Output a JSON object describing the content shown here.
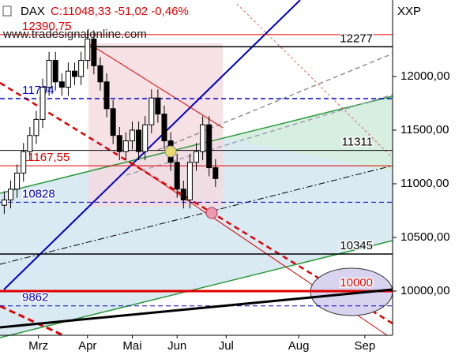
{
  "chart_data": {
    "type": "candlestick",
    "title": "DAX",
    "subtitle": "C:11048,33 -51,02 -0,46%",
    "watermark": "www.tradesignalonline.com",
    "axis_label": "XXP",
    "xlim": [
      0,
      184
    ],
    "xticks": [
      {
        "value": 18,
        "label": "Mrz"
      },
      {
        "value": 41,
        "label": "Apr"
      },
      {
        "value": 62,
        "label": "Mai"
      },
      {
        "value": 83,
        "label": "Jun"
      },
      {
        "value": 106,
        "label": "Jul"
      },
      {
        "value": 140,
        "label": "Aug"
      },
      {
        "value": 171,
        "label": "Sep"
      }
    ],
    "ylim": [
      9588,
      12713
    ],
    "yticks": [
      {
        "value": 10000,
        "label": "10000,00"
      },
      {
        "value": 10500,
        "label": "10500,00"
      },
      {
        "value": 11000,
        "label": "11000,00"
      },
      {
        "value": 11500,
        "label": "11500,00"
      },
      {
        "value": 12000,
        "label": "12000,00"
      }
    ],
    "x": [
      2,
      5,
      8,
      11,
      14,
      17,
      20,
      23,
      26,
      29,
      32,
      35,
      38,
      41,
      44,
      47,
      50,
      53,
      56,
      59,
      62,
      65,
      68,
      71,
      74,
      77,
      80,
      83,
      86,
      89,
      92,
      95,
      98,
      101
    ],
    "open": [
      10800,
      10850,
      10950,
      11100,
      11300,
      11450,
      11600,
      11900,
      12150,
      11950,
      11900,
      12050,
      12000,
      12150,
      12350,
      12100,
      11950,
      11700,
      11450,
      11300,
      11400,
      11500,
      11300,
      11550,
      11800,
      11650,
      11400,
      11200,
      10950,
      10850,
      11200,
      11300,
      11550,
      11150
    ],
    "high": [
      10930,
      11030,
      11180,
      11380,
      11530,
      11680,
      11980,
      12230,
      12230,
      12030,
      12130,
      12130,
      12230,
      12430,
      12430,
      12180,
      12030,
      11780,
      11530,
      11480,
      11580,
      11580,
      11630,
      11880,
      11880,
      11730,
      11480,
      11280,
      11030,
      11280,
      11380,
      11630,
      11630,
      11230
    ],
    "low": [
      10720,
      10770,
      10870,
      11020,
      11220,
      11370,
      11520,
      11820,
      11870,
      11820,
      11820,
      11920,
      11920,
      12070,
      12020,
      11870,
      11620,
      11370,
      11220,
      11220,
      11320,
      11220,
      11220,
      11470,
      11570,
      11320,
      11120,
      10870,
      10770,
      10770,
      11120,
      11220,
      11070,
      10970
    ],
    "close": [
      10850,
      10950,
      11100,
      11300,
      11450,
      11600,
      11900,
      12150,
      11950,
      11900,
      12050,
      12000,
      12150,
      12350,
      12100,
      11950,
      11700,
      11450,
      11300,
      11400,
      11500,
      11300,
      11550,
      11800,
      11650,
      11400,
      11200,
      10950,
      10850,
      11200,
      11300,
      11550,
      11150,
      11048.33
    ],
    "levels": [
      {
        "value": 12390.75,
        "label": "12390,75",
        "color": "#e00000",
        "width": 1,
        "dash": false,
        "side": "left"
      },
      {
        "value": 12277,
        "label": "12277",
        "color": "#000000",
        "width": 1.5,
        "dash": false,
        "side": "right"
      },
      {
        "value": 11794,
        "label": "11794",
        "color": "#0000cc",
        "width": 1.5,
        "dash": true,
        "side": "left"
      },
      {
        "value": 11311,
        "label": "11311",
        "color": "#000000",
        "width": 1,
        "dash": false,
        "side": "right"
      },
      {
        "value": 11167.55,
        "label": "11167,55",
        "color": "#e00000",
        "width": 1,
        "dash": false,
        "side": "left"
      },
      {
        "value": 10828,
        "label": "10828",
        "color": "#0000cc",
        "width": 1,
        "dash": true,
        "side": "left"
      },
      {
        "value": 10345,
        "label": "10345",
        "color": "#000000",
        "width": 1.5,
        "dash": false,
        "side": "right"
      },
      {
        "value": 10000,
        "label": "10000",
        "color": "#e00000",
        "width": 3,
        "dash": false,
        "side": "right"
      },
      {
        "value": 9862,
        "label": "9862",
        "color": "#0000cc",
        "width": 1,
        "dash": true,
        "side": "left"
      }
    ]
  }
}
